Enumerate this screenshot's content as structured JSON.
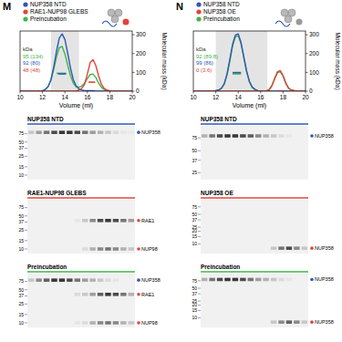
{
  "chart_data": [
    {
      "type": "line",
      "title": "M",
      "x_label": "Volume (ml)",
      "y2_label": "Molecular mass (kDa)",
      "x": [
        10,
        10.25,
        10.5,
        10.75,
        11,
        11.25,
        11.5,
        11.75,
        12,
        12.25,
        12.5,
        12.75,
        13,
        13.25,
        13.5,
        13.75,
        14,
        14.25,
        14.5,
        14.75,
        15,
        15.25,
        15.5,
        15.75,
        16,
        16.25,
        16.5,
        16.75,
        17,
        17.25,
        17.5,
        17.75,
        18,
        18.25,
        18.5,
        18.75,
        19,
        19.25,
        19.5,
        19.75,
        20
      ],
      "xlim": [
        10,
        20
      ],
      "xticks": [
        10,
        12,
        14,
        16,
        18,
        20
      ],
      "ylim": [
        0,
        1.05
      ],
      "yticks": [],
      "y2lim": [
        0,
        320
      ],
      "y2ticks": [
        0,
        100,
        200,
        300
      ],
      "shaded_range": [
        12.75,
        15.25
      ],
      "series": [
        {
          "name": "NUP358 NTD",
          "color": "#2f58b5",
          "values": [
            0,
            0,
            0,
            0,
            0,
            0,
            0,
            0,
            0.01,
            0.03,
            0.08,
            0.2,
            0.42,
            0.7,
            0.93,
            1.0,
            0.9,
            0.66,
            0.4,
            0.2,
            0.09,
            0.04,
            0.02,
            0.01,
            0.01,
            0.01,
            0.01,
            0,
            0,
            0,
            0,
            0,
            0,
            0,
            0,
            0,
            0,
            0,
            0,
            0,
            0
          ]
        },
        {
          "name": "RAE1-NUP98 GLEBS",
          "color": "#e0453a",
          "values": [
            0,
            0,
            0,
            0,
            0,
            0,
            0,
            0,
            0,
            0,
            0,
            0,
            0,
            0,
            0,
            0,
            0,
            0,
            0,
            0,
            0,
            0.02,
            0.05,
            0.12,
            0.3,
            0.5,
            0.55,
            0.45,
            0.27,
            0.12,
            0.05,
            0.02,
            0.01,
            0,
            0,
            0,
            0,
            0,
            0,
            0,
            0
          ]
        },
        {
          "name": "Preincubation",
          "color": "#3fb54a",
          "values": [
            0,
            0,
            0,
            0,
            0,
            0,
            0,
            0,
            0.01,
            0.03,
            0.08,
            0.19,
            0.38,
            0.6,
            0.76,
            0.78,
            0.65,
            0.45,
            0.27,
            0.14,
            0.08,
            0.07,
            0.09,
            0.14,
            0.22,
            0.29,
            0.3,
            0.24,
            0.14,
            0.07,
            0.03,
            0.01,
            0,
            0,
            0,
            0,
            0,
            0,
            0,
            0,
            0
          ]
        }
      ],
      "mass_segments": [
        {
          "color": "#3fb54a",
          "x": [
            13.25,
            14.1
          ],
          "value": 95
        },
        {
          "color": "#2f58b5",
          "x": [
            13.4,
            14.1
          ],
          "value": 92
        },
        {
          "color": "#e0453a",
          "x": [
            16.1,
            16.7
          ],
          "value": 48
        }
      ],
      "annotations": [
        {
          "text": "kDa",
          "color": "#333333"
        },
        {
          "text": "95 (134)",
          "color": "#3fb54a"
        },
        {
          "text": "92 (80)",
          "color": "#2f58b5"
        },
        {
          "text": "48 (48)",
          "color": "#e0453a"
        }
      ]
    },
    {
      "type": "line",
      "title": "N",
      "x_label": "Volume (ml)",
      "y2_label": "Molecular mass (kDa)",
      "x": [
        10,
        10.25,
        10.5,
        10.75,
        11,
        11.25,
        11.5,
        11.75,
        12,
        12.25,
        12.5,
        12.75,
        13,
        13.25,
        13.5,
        13.75,
        14,
        14.25,
        14.5,
        14.75,
        15,
        15.25,
        15.5,
        15.75,
        16,
        16.25,
        16.5,
        16.75,
        17,
        17.25,
        17.5,
        17.75,
        18,
        18.25,
        18.5,
        18.75,
        19,
        19.25,
        19.5,
        19.75,
        20
      ],
      "xlim": [
        10,
        20
      ],
      "xticks": [
        10,
        12,
        14,
        16,
        18,
        20
      ],
      "ylim": [
        0,
        1.05
      ],
      "yticks": [],
      "y2lim": [
        0,
        320
      ],
      "y2ticks": [
        0,
        100,
        200,
        300
      ],
      "shaded_range": [
        12,
        16.6
      ],
      "series": [
        {
          "name": "NUP358 NTD",
          "color": "#2f58b5",
          "values": [
            0,
            0,
            0,
            0,
            0,
            0,
            0,
            0,
            0.01,
            0.02,
            0.05,
            0.13,
            0.3,
            0.55,
            0.82,
            0.98,
            1.0,
            0.85,
            0.6,
            0.35,
            0.17,
            0.07,
            0.03,
            0.01,
            0,
            0,
            0,
            0,
            0,
            0,
            0,
            0,
            0,
            0,
            0,
            0,
            0,
            0,
            0,
            0,
            0
          ]
        },
        {
          "name": "NUP358 OE",
          "color": "#e0453a",
          "values": [
            0,
            0,
            0,
            0,
            0,
            0,
            0,
            0,
            0,
            0,
            0,
            0,
            0,
            0,
            0,
            0,
            0,
            0,
            0,
            0,
            0,
            0,
            0,
            0,
            0,
            0,
            0,
            0.02,
            0.09,
            0.22,
            0.34,
            0.36,
            0.27,
            0.14,
            0.05,
            0.02,
            0.01,
            0,
            0,
            0,
            0
          ]
        },
        {
          "name": "Preincubation",
          "color": "#3fb54a",
          "values": [
            0,
            0,
            0,
            0,
            0,
            0,
            0,
            0,
            0.01,
            0.02,
            0.05,
            0.12,
            0.28,
            0.52,
            0.79,
            0.95,
            0.97,
            0.83,
            0.58,
            0.34,
            0.16,
            0.07,
            0.03,
            0.01,
            0,
            0,
            0.01,
            0.03,
            0.1,
            0.22,
            0.32,
            0.34,
            0.26,
            0.13,
            0.05,
            0.02,
            0.01,
            0,
            0,
            0,
            0
          ]
        }
      ],
      "mass_segments": [
        {
          "color": "#3fb54a",
          "x": [
            13.5,
            14.25
          ],
          "value": 92
        },
        {
          "color": "#2f58b5",
          "x": [
            13.5,
            14.25
          ],
          "value": 99
        },
        {
          "color": "#e0453a",
          "x": [
            17.5,
            18.0
          ],
          "value": 0
        }
      ],
      "annotations": [
        {
          "text": "kDa",
          "color": "#333333"
        },
        {
          "text": "92 (89.8)",
          "color": "#3fb54a"
        },
        {
          "text": "99 (86)",
          "color": "#2f58b5"
        },
        {
          "text": "0 (3.6)",
          "color": "#e0453a"
        }
      ]
    }
  ],
  "gel_panels": [
    {
      "gels": [
        {
          "title": "NUP358 NTD",
          "color": "#2f58b5",
          "kda_range": [
            8,
            110
          ],
          "markers": [
            75,
            50,
            37,
            25,
            15,
            10
          ],
          "lanes": 14,
          "bands": [
            {
              "label": "NUP358",
              "color": "#2f58b5",
              "kda": 80,
              "intensity": [
                0.2,
                0.4,
                0.6,
                0.8,
                0.9,
                0.9,
                0.8,
                0.6,
                0.4,
                0.3,
                0.2,
                0.1,
                0.05,
                0.03
              ]
            }
          ]
        },
        {
          "title": "RAE1-NUP98 GLEBS",
          "color": "#e0453a",
          "kda_range": [
            8,
            110
          ],
          "markers": [
            75,
            50,
            37,
            25,
            15,
            10
          ],
          "lanes": 14,
          "bands": [
            {
              "label": "RAE1",
              "color": "#e0453a",
              "kda": 40,
              "intensity": [
                0,
                0,
                0,
                0,
                0,
                0,
                0.05,
                0.2,
                0.5,
                0.8,
                0.9,
                0.8,
                0.6,
                0.4
              ]
            },
            {
              "label": "NUP98",
              "color": "#e0453a",
              "kda": 10,
              "intensity": [
                0,
                0,
                0,
                0,
                0,
                0,
                0,
                0.1,
                0.3,
                0.5,
                0.6,
                0.5,
                0.3,
                0.2
              ]
            }
          ]
        },
        {
          "title": "Preincubation",
          "color": "#3fb54a",
          "kda_range": [
            8,
            110
          ],
          "markers": [
            75,
            50,
            37,
            25,
            15,
            10
          ],
          "lanes": 14,
          "bands": [
            {
              "label": "NUP358",
              "color": "#2f58b5",
              "kda": 80,
              "intensity": [
                0.2,
                0.5,
                0.7,
                0.9,
                0.9,
                0.8,
                0.6,
                0.4,
                0.3,
                0.2,
                0.1,
                0.05,
                0,
                0
              ]
            },
            {
              "label": "RAE1",
              "color": "#e0453a",
              "kda": 40,
              "intensity": [
                0,
                0,
                0,
                0,
                0,
                0,
                0.1,
                0.2,
                0.4,
                0.7,
                0.9,
                0.8,
                0.6,
                0.3
              ]
            },
            {
              "label": "NUP98",
              "color": "#e0453a",
              "kda": 10,
              "intensity": [
                0,
                0,
                0,
                0,
                0,
                0,
                0.05,
                0.1,
                0.3,
                0.5,
                0.6,
                0.5,
                0.3,
                0.2
              ]
            }
          ]
        }
      ]
    },
    {
      "gels": [
        {
          "title": "NUP358 NTD",
          "color": "#2f58b5",
          "kda_range": [
            20,
            110
          ],
          "markers": [
            75,
            50,
            37,
            25
          ],
          "lanes": 14,
          "bands": [
            {
              "label": "NUP358",
              "color": "#2f58b5",
              "kda": 80,
              "intensity": [
                0.3,
                0.6,
                0.8,
                0.9,
                0.9,
                0.8,
                0.7,
                0.5,
                0.3,
                0.2,
                0.1,
                0.05,
                0,
                0
              ]
            }
          ]
        },
        {
          "title": "NUP358 OE",
          "color": "#e0453a",
          "kda_range": [
            6,
            110
          ],
          "markers": [
            75,
            50,
            37,
            25,
            20,
            15,
            10
          ],
          "lanes": 14,
          "bands": [
            {
              "label": "NUP358",
              "color": "#e0453a",
              "kda": 8,
              "intensity": [
                0,
                0,
                0,
                0,
                0,
                0,
                0,
                0,
                0,
                0.2,
                0.6,
                0.8,
                0.5,
                0.2
              ]
            }
          ]
        },
        {
          "title": "Preincubation",
          "color": "#3fb54a",
          "kda_range": [
            6,
            110
          ],
          "markers": [
            75,
            50,
            37,
            25,
            20,
            15,
            10
          ],
          "lanes": 14,
          "bands": [
            {
              "label": "NUP358",
              "color": "#2f58b5",
              "kda": 80,
              "intensity": [
                0.3,
                0.6,
                0.8,
                0.9,
                0.9,
                0.8,
                0.6,
                0.4,
                0.3,
                0.2,
                0.1,
                0.05,
                0,
                0
              ]
            },
            {
              "label": "NUP358",
              "color": "#e0453a",
              "kda": 8,
              "intensity": [
                0,
                0,
                0,
                0,
                0,
                0,
                0,
                0,
                0,
                0.2,
                0.5,
                0.7,
                0.5,
                0.2
              ]
            }
          ]
        }
      ]
    }
  ]
}
